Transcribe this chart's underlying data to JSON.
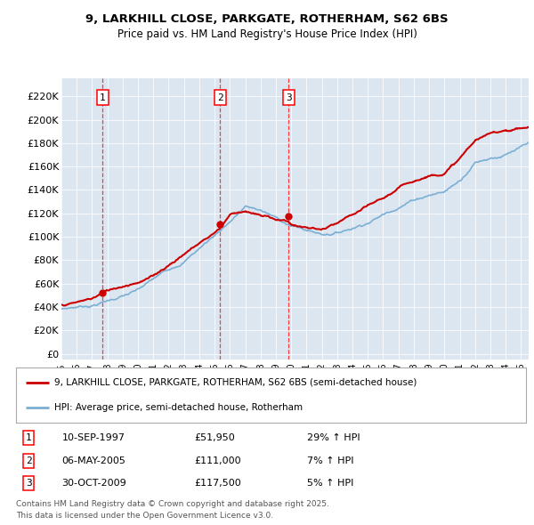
{
  "title1": "9, LARKHILL CLOSE, PARKGATE, ROTHERHAM, S62 6BS",
  "title2": "Price paid vs. HM Land Registry's House Price Index (HPI)",
  "transactions": [
    {
      "num": 1,
      "date_label": "10-SEP-1997",
      "price": 51950,
      "year": 1997.7,
      "pct": "29% ↑ HPI"
    },
    {
      "num": 2,
      "date_label": "06-MAY-2005",
      "price": 111000,
      "year": 2005.35,
      "pct": "7% ↑ HPI"
    },
    {
      "num": 3,
      "date_label": "30-OCT-2009",
      "price": 117500,
      "year": 2009.83,
      "pct": "5% ↑ HPI"
    }
  ],
  "legend_line1": "9, LARKHILL CLOSE, PARKGATE, ROTHERHAM, S62 6BS (semi-detached house)",
  "legend_line2": "HPI: Average price, semi-detached house, Rotherham",
  "footer1": "Contains HM Land Registry data © Crown copyright and database right 2025.",
  "footer2": "This data is licensed under the Open Government Licence v3.0.",
  "price_color": "#cc0000",
  "hpi_color": "#7bafd4",
  "background_color": "#dce6f1",
  "plot_bg_color": "#dce6f1",
  "yticks": [
    0,
    20000,
    40000,
    60000,
    80000,
    100000,
    120000,
    140000,
    160000,
    180000,
    200000,
    220000
  ],
  "ylim": [
    -5000,
    235000
  ],
  "xlim_start": 1995,
  "xlim_end": 2025.5
}
